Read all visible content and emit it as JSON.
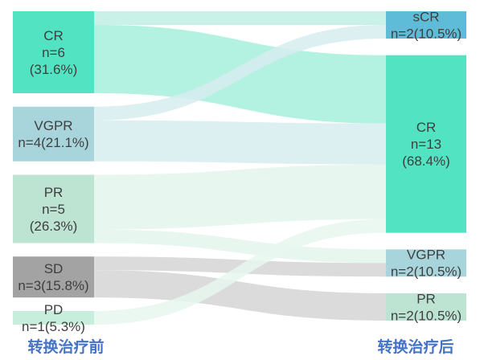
{
  "chart_data": {
    "type": "sankey",
    "left_nodes": [
      {
        "id": "l_cr",
        "lines": [
          "CR",
          "n=6",
          "(31.6%)"
        ],
        "value": 6,
        "color": "#52e3c2"
      },
      {
        "id": "l_vgpr",
        "lines": [
          "VGPR",
          "n=4(21.1%)"
        ],
        "value": 4,
        "color": "#a8d5dc"
      },
      {
        "id": "l_pr",
        "lines": [
          "PR",
          "n=5",
          "(26.3%)"
        ],
        "value": 5,
        "color": "#bde3d3"
      },
      {
        "id": "l_sd",
        "lines": [
          "SD",
          "n=3(15.8%)"
        ],
        "value": 3,
        "color": "#a3a3a3"
      },
      {
        "id": "l_pd",
        "lines": [
          "PD",
          "n=1(5.3%)"
        ],
        "value": 1,
        "color": "#c7eedd"
      }
    ],
    "right_nodes": [
      {
        "id": "r_scr",
        "lines": [
          "sCR",
          "n=2(10.5%)"
        ],
        "value": 2,
        "color": "#5fbcd8"
      },
      {
        "id": "r_cr",
        "lines": [
          "CR",
          "n=13",
          "(68.4%)"
        ],
        "value": 13,
        "color": "#52e3c2"
      },
      {
        "id": "r_vgpr",
        "lines": [
          "VGPR",
          "n=2(10.5%)"
        ],
        "value": 2,
        "color": "#a8d5dc"
      },
      {
        "id": "r_pr",
        "lines": [
          "PR",
          "n=2(10.5%)"
        ],
        "value": 2,
        "color": "#bde3d3"
      }
    ],
    "links": [
      {
        "source": "l_cr",
        "target": "r_scr",
        "value": 1,
        "color": "#bfeee3"
      },
      {
        "source": "l_cr",
        "target": "r_cr",
        "value": 5,
        "color": "#a6eedc"
      },
      {
        "source": "l_vgpr",
        "target": "r_scr",
        "value": 1,
        "color": "#d6ecef"
      },
      {
        "source": "l_vgpr",
        "target": "r_cr",
        "value": 3,
        "color": "#d6ecef"
      },
      {
        "source": "l_pr",
        "target": "r_cr",
        "value": 4,
        "color": "#e4f4ed"
      },
      {
        "source": "l_pr",
        "target": "r_vgpr",
        "value": 1,
        "color": "#e4f4ed"
      },
      {
        "source": "l_sd",
        "target": "r_vgpr",
        "value": 1,
        "color": "#d5d5d5"
      },
      {
        "source": "l_sd",
        "target": "r_pr",
        "value": 2,
        "color": "#d5d5d5"
      },
      {
        "source": "l_pd",
        "target": "r_cr",
        "value": 1,
        "color": "#e8f7f0"
      }
    ],
    "left_axis_label": "转换治疗前",
    "right_axis_label": "转换治疗后",
    "axis_label_color": "#4472c4"
  }
}
